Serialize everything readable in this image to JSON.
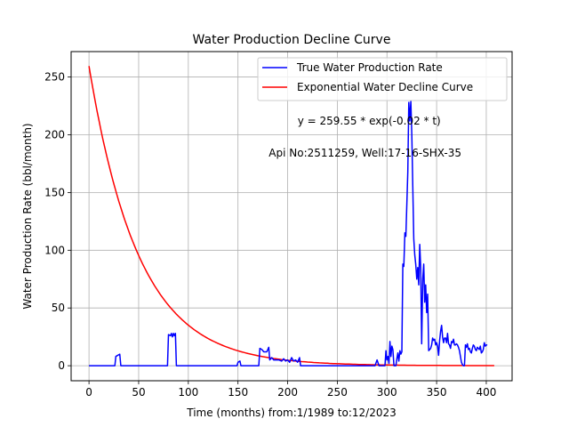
{
  "chart_data": {
    "type": "line",
    "title": "Water Production Decline Curve",
    "xlabel": "Time (months) from:1/1989 to:12/2023",
    "ylabel": "Water Production Rate (bbl/month)",
    "xlim": [
      -18,
      426
    ],
    "ylim": [
      -13,
      272
    ],
    "xticks": [
      0,
      50,
      100,
      150,
      200,
      250,
      300,
      350,
      400
    ],
    "yticks": [
      0,
      50,
      100,
      150,
      200,
      250
    ],
    "grid": true,
    "legend": "top-right",
    "colors": {
      "true_rate": "#0000ff",
      "decline_curve": "#ff0000"
    },
    "annotations": [
      {
        "text": "y = 259.55 * exp(-0.02 * t)",
        "x": 210,
        "y": 212
      },
      {
        "text": "Api No:2511259, Well:17-16-SHX-35",
        "x": 181,
        "y": 184
      }
    ],
    "series": [
      {
        "name": "True Water Production Rate",
        "color": "#0000ff",
        "points": [
          [
            0,
            0
          ],
          [
            26,
            0
          ],
          [
            27,
            8
          ],
          [
            31,
            10
          ],
          [
            32,
            0
          ],
          [
            79,
            0
          ],
          [
            80,
            27
          ],
          [
            82,
            26
          ],
          [
            83,
            28
          ],
          [
            84,
            25
          ],
          [
            85,
            28
          ],
          [
            86,
            26
          ],
          [
            87,
            28
          ],
          [
            88,
            0
          ],
          [
            149,
            0
          ],
          [
            150,
            3
          ],
          [
            152,
            4
          ],
          [
            153,
            0
          ],
          [
            171,
            0
          ],
          [
            172,
            15
          ],
          [
            174,
            14
          ],
          [
            176,
            12
          ],
          [
            179,
            12
          ],
          [
            181,
            16
          ],
          [
            182,
            5
          ],
          [
            184,
            7
          ],
          [
            186,
            5
          ],
          [
            188,
            5
          ],
          [
            191,
            5
          ],
          [
            194,
            4
          ],
          [
            196,
            6
          ],
          [
            198,
            4
          ],
          [
            200,
            5
          ],
          [
            202,
            3
          ],
          [
            204,
            7
          ],
          [
            206,
            4
          ],
          [
            208,
            5
          ],
          [
            210,
            3
          ],
          [
            212,
            7
          ],
          [
            213,
            0
          ],
          [
            288,
            0
          ],
          [
            290,
            5
          ],
          [
            292,
            0
          ],
          [
            298,
            0
          ],
          [
            299,
            13
          ],
          [
            300,
            5
          ],
          [
            301,
            8
          ],
          [
            302,
            2
          ],
          [
            303,
            21
          ],
          [
            304,
            8
          ],
          [
            305,
            17
          ],
          [
            306,
            14
          ],
          [
            307,
            0
          ],
          [
            309,
            0
          ],
          [
            310,
            6
          ],
          [
            311,
            11
          ],
          [
            312,
            4
          ],
          [
            313,
            13
          ],
          [
            314,
            10
          ],
          [
            315,
            12
          ],
          [
            316,
            88
          ],
          [
            317,
            86
          ],
          [
            318,
            115
          ],
          [
            319,
            112
          ],
          [
            320,
            140
          ],
          [
            321,
            168
          ],
          [
            322,
            228
          ],
          [
            323,
            212
          ],
          [
            324,
            229
          ],
          [
            325,
            200
          ],
          [
            326,
            155
          ],
          [
            327,
            110
          ],
          [
            328,
            96
          ],
          [
            329,
            88
          ],
          [
            330,
            75
          ],
          [
            331,
            85
          ],
          [
            332,
            70
          ],
          [
            333,
            105
          ],
          [
            334,
            85
          ],
          [
            335,
            19
          ],
          [
            336,
            75
          ],
          [
            337,
            88
          ],
          [
            338,
            55
          ],
          [
            339,
            70
          ],
          [
            340,
            46
          ],
          [
            341,
            62
          ],
          [
            342,
            13
          ],
          [
            343,
            14
          ],
          [
            344,
            15
          ],
          [
            345,
            18
          ],
          [
            346,
            24
          ],
          [
            347,
            22
          ],
          [
            348,
            23
          ],
          [
            349,
            18
          ],
          [
            350,
            20
          ],
          [
            351,
            17
          ],
          [
            352,
            9
          ],
          [
            353,
            22
          ],
          [
            354,
            30
          ],
          [
            355,
            35
          ],
          [
            356,
            25
          ],
          [
            357,
            20
          ],
          [
            358,
            24
          ],
          [
            359,
            24
          ],
          [
            360,
            20
          ],
          [
            361,
            28
          ],
          [
            362,
            19
          ],
          [
            363,
            18
          ],
          [
            364,
            15
          ],
          [
            365,
            21
          ],
          [
            366,
            20
          ],
          [
            367,
            23
          ],
          [
            368,
            18
          ],
          [
            369,
            18
          ],
          [
            370,
            19
          ],
          [
            371,
            18
          ],
          [
            372,
            16
          ],
          [
            373,
            13
          ],
          [
            374,
            8
          ],
          [
            375,
            3
          ],
          [
            376,
            1
          ],
          [
            377,
            0
          ],
          [
            378,
            0
          ],
          [
            379,
            18
          ],
          [
            380,
            16
          ],
          [
            381,
            19
          ],
          [
            382,
            14
          ],
          [
            383,
            15
          ],
          [
            384,
            12
          ],
          [
            385,
            11
          ],
          [
            386,
            15
          ],
          [
            387,
            18
          ],
          [
            388,
            17
          ],
          [
            389,
            14
          ],
          [
            390,
            13
          ],
          [
            391,
            16
          ],
          [
            392,
            15
          ],
          [
            393,
            14
          ],
          [
            394,
            17
          ],
          [
            395,
            11
          ],
          [
            396,
            12
          ],
          [
            397,
            14
          ],
          [
            398,
            20
          ],
          [
            399,
            17
          ],
          [
            400,
            18
          ],
          [
            401,
            18
          ]
        ]
      },
      {
        "name": "Exponential Water Decline Curve",
        "color": "#ff0000",
        "equation": {
          "a": 259.55,
          "b": -0.02,
          "t_start": 0,
          "t_end": 408
        }
      }
    ]
  }
}
